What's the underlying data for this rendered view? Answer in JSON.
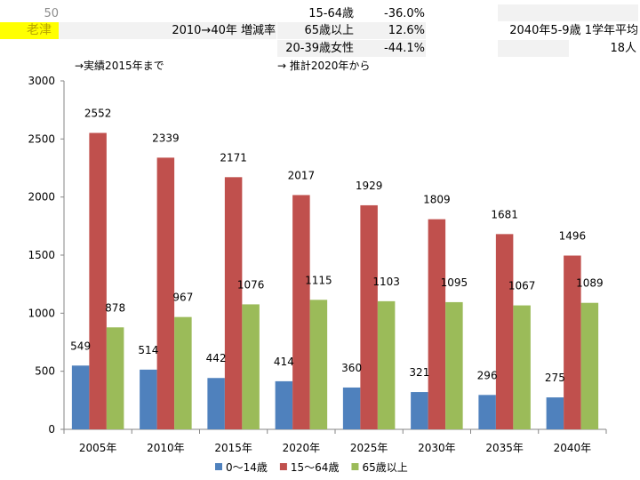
{
  "header": {
    "row_number": "50",
    "place_name": "老津",
    "metric_label": "2010→40年 増減率",
    "rows": [
      {
        "label": "15-64歳",
        "value": "-36.0%"
      },
      {
        "label": "65歳以上",
        "value": "12.6%"
      },
      {
        "label": "20-39歳女性",
        "value": "-44.1%"
      }
    ],
    "avg_label": "2040年5-9歳 1学年平均",
    "avg_value": "18人",
    "note_actual": "→実績2015年まで",
    "note_projected": "→ 推計2020年から"
  },
  "chart_data": {
    "type": "bar",
    "categories": [
      "2005年",
      "2010年",
      "2015年",
      "2020年",
      "2025年",
      "2030年",
      "2035年",
      "2040年"
    ],
    "series": [
      {
        "name": "0～14歳",
        "color": "#4f81bd",
        "values": [
          549,
          514,
          442,
          414,
          360,
          321,
          296,
          275
        ]
      },
      {
        "name": "15～64歳",
        "color": "#c0504d",
        "values": [
          2552,
          2339,
          2171,
          2017,
          1929,
          1809,
          1681,
          1496
        ]
      },
      {
        "name": "65歳以上",
        "color": "#9bbb59",
        "values": [
          878,
          967,
          1076,
          1115,
          1103,
          1095,
          1067,
          1089
        ]
      }
    ],
    "ylim": [
      0,
      3000
    ],
    "yticks": [
      0,
      500,
      1000,
      1500,
      2000,
      2500,
      3000
    ],
    "grid": false,
    "legend": "bottom"
  }
}
